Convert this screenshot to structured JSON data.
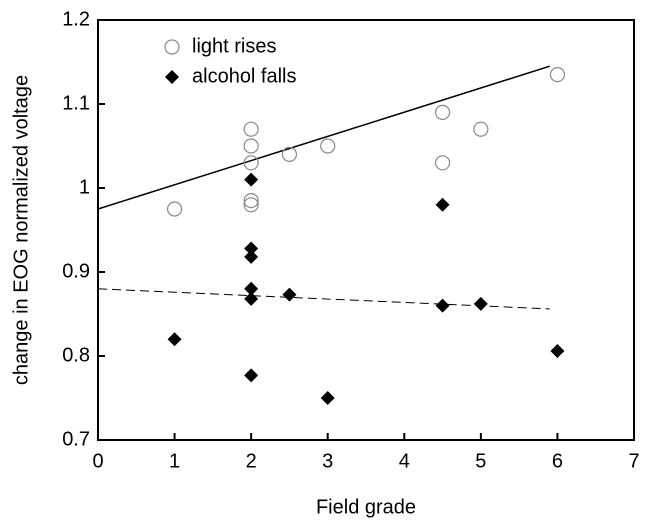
{
  "chart_data": {
    "type": "scatter",
    "xlabel": "Field grade",
    "ylabel": "change in EOG normalized voltage",
    "xlim": [
      0,
      7
    ],
    "xticks": [
      0,
      1,
      2,
      3,
      4,
      5,
      6,
      7
    ],
    "ylim": [
      0.7,
      1.2
    ],
    "yticks": [
      0.7,
      0.8,
      0.9,
      1,
      1.1,
      1.2
    ],
    "legend": "upper left",
    "series": [
      {
        "name": "light  rises",
        "marker": "circle",
        "color": "#888888",
        "x": [
          1,
          2,
          2,
          2,
          2,
          2,
          2.5,
          3,
          4.5,
          4.5,
          5,
          6
        ],
        "values": [
          0.975,
          1.07,
          1.05,
          1.03,
          0.985,
          0.98,
          1.04,
          1.05,
          1.09,
          1.03,
          1.07,
          1.135
        ]
      },
      {
        "name": "alcohol falls",
        "marker": "diamond",
        "color": "#000000",
        "x": [
          1,
          2,
          2,
          2,
          2,
          2,
          2,
          2.5,
          3,
          4.5,
          4.5,
          5,
          6
        ],
        "values": [
          0.82,
          1.01,
          0.928,
          0.918,
          0.88,
          0.868,
          0.777,
          0.873,
          0.75,
          0.98,
          0.86,
          0.862,
          0.806
        ]
      }
    ],
    "lines": [
      {
        "x": [
          0,
          5.9
        ],
        "values": [
          0.975,
          1.145
        ],
        "style": "solid"
      },
      {
        "x": [
          0,
          5.9
        ],
        "values": [
          0.88,
          0.856
        ],
        "style": "dashed"
      }
    ]
  }
}
